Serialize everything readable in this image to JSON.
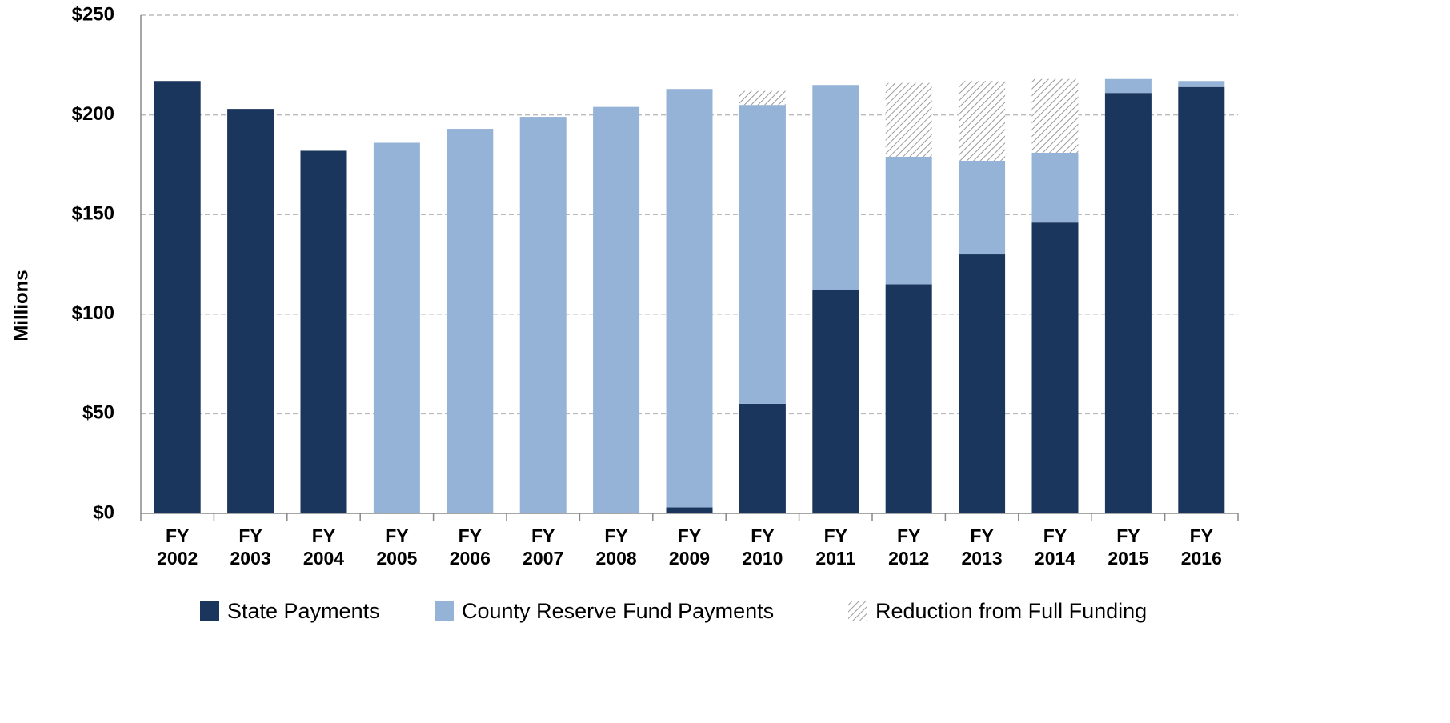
{
  "chart_data": {
    "type": "stacked_bar",
    "y_label": "Millions",
    "categories": [
      "FY 2002",
      "FY 2003",
      "FY 2004",
      "FY 2005",
      "FY 2006",
      "FY 2007",
      "FY 2008",
      "FY 2009",
      "FY 2010",
      "FY 2011",
      "FY 2012",
      "FY 2013",
      "FY 2014",
      "FY 2015",
      "FY 2016"
    ],
    "series": [
      {
        "name": "State Payments",
        "color": "#1a365d",
        "pattern": "solid",
        "values": [
          217,
          203,
          182,
          0,
          0,
          0,
          0,
          3,
          55,
          112,
          115,
          130,
          146,
          211,
          214
        ]
      },
      {
        "name": "County Reserve Fund Payments",
        "color": "#95b3d7",
        "pattern": "solid",
        "values": [
          0,
          0,
          0,
          186,
          193,
          199,
          204,
          210,
          150,
          103,
          64,
          47,
          35,
          7,
          3
        ]
      },
      {
        "name": "Reduction from Full Funding",
        "color": "#999999",
        "pattern": "hatch",
        "values": [
          0,
          0,
          0,
          0,
          0,
          0,
          0,
          0,
          7,
          0,
          37,
          40,
          37,
          0,
          0
        ]
      }
    ],
    "ylim": [
      0,
      250
    ],
    "yticks": [
      {
        "value": 0,
        "label": "$0"
      },
      {
        "value": 50,
        "label": "$50"
      },
      {
        "value": 100,
        "label": "$100"
      },
      {
        "value": 150,
        "label": "$150"
      },
      {
        "value": 200,
        "label": "$200"
      },
      {
        "value": 250,
        "label": "$250"
      }
    ],
    "grid": true,
    "legend": "bottom"
  }
}
